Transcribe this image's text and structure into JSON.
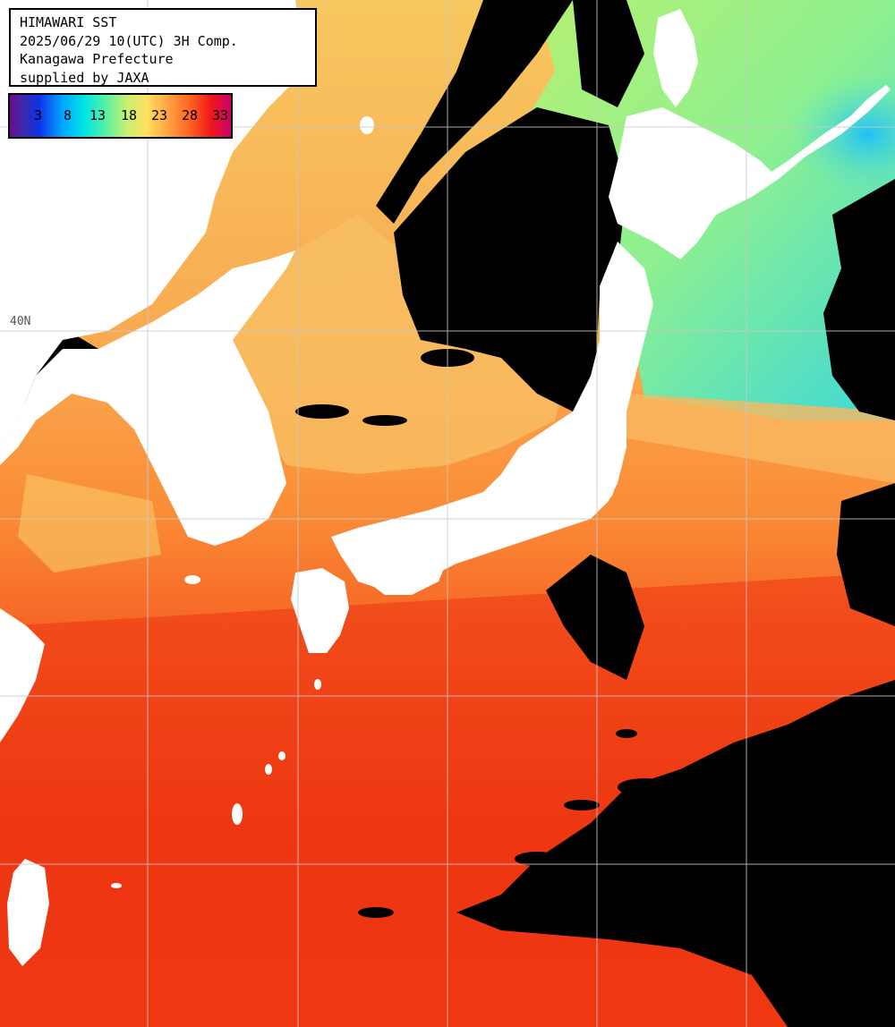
{
  "header": {
    "title": "HIMAWARI SST",
    "timestamp": "2025/06/29 10(UTC) 3H Comp.",
    "region": "Kanagawa Prefecture",
    "credit": "supplied by JAXA"
  },
  "color_scale": {
    "labels": [
      "3",
      "8",
      "13",
      "18",
      "23",
      "28",
      "33"
    ],
    "stops": [
      "#6a0d8f",
      "#1030e8",
      "#00a7ff",
      "#00e6e6",
      "#c8f070",
      "#ffe060",
      "#ffa040",
      "#ff6020",
      "#f01818",
      "#c8006a"
    ]
  },
  "grid": {
    "latitude_label": "40N",
    "line_color": "#c8c8c8"
  },
  "legend_colors": {
    "land": "#ffffff",
    "cloud": "#000000",
    "warm_sea": "#f03010",
    "mild_sea": "#ff8a30",
    "cool_sea": "#f8d070",
    "cold_sea": "#80f080",
    "coldest_sea": "#20c8f0"
  }
}
